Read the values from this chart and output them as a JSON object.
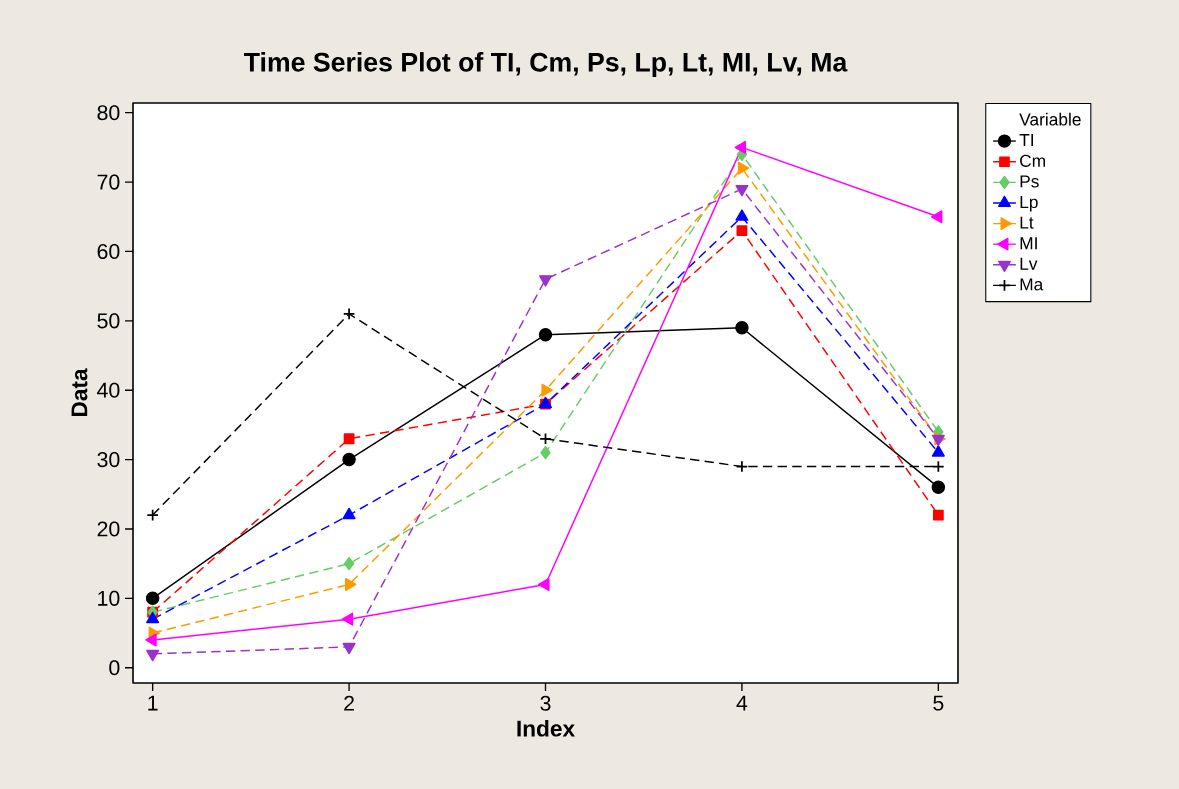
{
  "chart_data": {
    "type": "line",
    "title": "Time Series Plot of TI, Cm, Ps, Lp, Lt, MI, Lv, Ma",
    "xlabel": "Index",
    "ylabel": "Data",
    "legend_title": "Variable",
    "legend": "top right",
    "x": [
      1,
      2,
      3,
      4,
      5
    ],
    "xlim": [
      0.9,
      5.1
    ],
    "xticks": [
      1,
      2,
      3,
      4,
      5
    ],
    "ylim": [
      -2.2,
      81.4
    ],
    "yticks": [
      0,
      10,
      20,
      30,
      40,
      50,
      60,
      70,
      80
    ],
    "grid": false,
    "series": [
      {
        "name": "TI",
        "color": "#000000",
        "marker": "circle",
        "line_style": "solid",
        "values": [
          10,
          30,
          48,
          49,
          26
        ]
      },
      {
        "name": "Cm",
        "color": "#ff0000",
        "marker": "square",
        "line_style": "dashed",
        "values": [
          8,
          33,
          38,
          63,
          22
        ]
      },
      {
        "name": "Ps",
        "color": "#66cc66",
        "marker": "diamond",
        "line_style": "dashed",
        "values": [
          8,
          15,
          31,
          74,
          34
        ]
      },
      {
        "name": "Lp",
        "color": "#0000ff",
        "marker": "triangle",
        "line_style": "dashed",
        "values": [
          7,
          22,
          38,
          65,
          31
        ]
      },
      {
        "name": "Lt",
        "color": "#ff9900",
        "marker": "triangle-right",
        "line_style": "dashed",
        "values": [
          5,
          12,
          40,
          72,
          33
        ]
      },
      {
        "name": "MI",
        "color": "#ff00ff",
        "marker": "triangle-left",
        "line_style": "solid",
        "values": [
          4,
          7,
          12,
          75,
          65
        ]
      },
      {
        "name": "Lv",
        "color": "#9933cc",
        "marker": "triangle-down",
        "line_style": "dashed",
        "values": [
          2,
          3,
          56,
          69,
          33
        ]
      },
      {
        "name": "Ma",
        "color": "#000000",
        "marker": "cross",
        "line_style": "dashed",
        "values": [
          22,
          51,
          33,
          29,
          29
        ]
      }
    ]
  }
}
